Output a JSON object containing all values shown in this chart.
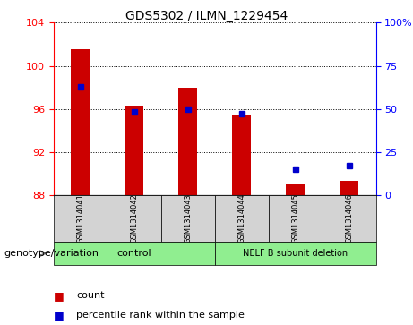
{
  "title": "GDS5302 / ILMN_1229454",
  "samples": [
    "GSM1314041",
    "GSM1314042",
    "GSM1314043",
    "GSM1314044",
    "GSM1314045",
    "GSM1314046"
  ],
  "count_values": [
    101.5,
    96.3,
    98.0,
    95.4,
    89.0,
    89.3
  ],
  "percentile_values": [
    63,
    48,
    50,
    47,
    15,
    17
  ],
  "ylim_left": [
    88,
    104
  ],
  "yticks_left": [
    88,
    92,
    96,
    100,
    104
  ],
  "yticks_right": [
    0,
    25,
    50,
    75,
    100
  ],
  "yticklabels_right": [
    "0",
    "25",
    "50",
    "75",
    "100%"
  ],
  "bar_color": "#cc0000",
  "dot_color": "#0000cc",
  "bar_color_legend": "#cc0000",
  "dot_color_legend": "#0000cc",
  "genotype_label": "genotype/variation",
  "legend_count": "count",
  "legend_percentile": "percentile rank within the sample",
  "label_area_color": "#d3d3d3",
  "group_green": "#90ee90",
  "title_fontsize": 10,
  "tick_fontsize": 8,
  "sample_fontsize": 6,
  "group_fontsize": 8,
  "legend_fontsize": 8,
  "genotype_fontsize": 8
}
